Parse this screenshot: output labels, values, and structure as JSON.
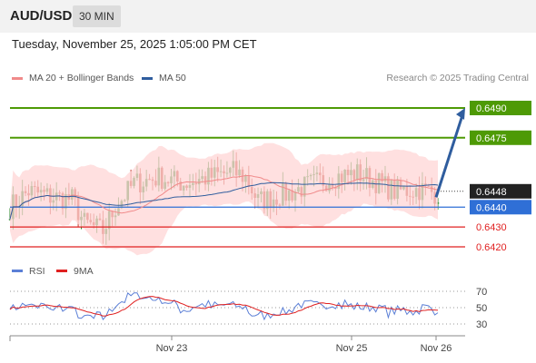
{
  "header": {
    "symbol": "AUD/USD",
    "timeframe": "30 MIN"
  },
  "datetime": "Tuesday, November 25, 2025 1:05:00 PM CET",
  "legend": {
    "items": [
      {
        "label": "MA 20 + Bollinger Bands",
        "color": "#f08a8a"
      },
      {
        "label": "MA 50",
        "color": "#2f5d9e"
      }
    ],
    "credit": "Research © 2025 Trading Central"
  },
  "chart_data": {
    "type": "candlestick",
    "price_levels": [
      {
        "value": 0.649,
        "label": "0.6490",
        "kind": "resistance",
        "color": "#4e9a06"
      },
      {
        "value": 0.6475,
        "label": "0.6475",
        "kind": "resistance",
        "color": "#4e9a06"
      },
      {
        "value": 0.6448,
        "label": "0.6448",
        "kind": "last",
        "color": "#222222"
      },
      {
        "value": 0.644,
        "label": "0.6440",
        "kind": "pivot",
        "color": "#2f6fd6"
      },
      {
        "value": 0.643,
        "label": "0.6430",
        "kind": "support",
        "color": "#e02020"
      },
      {
        "value": 0.642,
        "label": "0.6420",
        "kind": "support",
        "color": "#e02020"
      }
    ],
    "price_range": [
      0.6412,
      0.6498
    ],
    "x_ticks": [
      "Nov 23",
      "Nov 25",
      "Nov 26"
    ],
    "projection": {
      "from": 0.6445,
      "to": 0.649
    },
    "colors": {
      "up": "#2e8b2e",
      "down": "#c0392b",
      "band": "#ffd6d6",
      "ma20": "#f08a8a",
      "ma50": "#2f5d9e"
    },
    "rsi": {
      "legend": [
        {
          "label": "RSI",
          "color": "#5b7fd6"
        },
        {
          "label": "9MA",
          "color": "#e02020"
        }
      ],
      "levels": [
        70,
        50,
        30
      ],
      "range": [
        25,
        75
      ]
    }
  }
}
